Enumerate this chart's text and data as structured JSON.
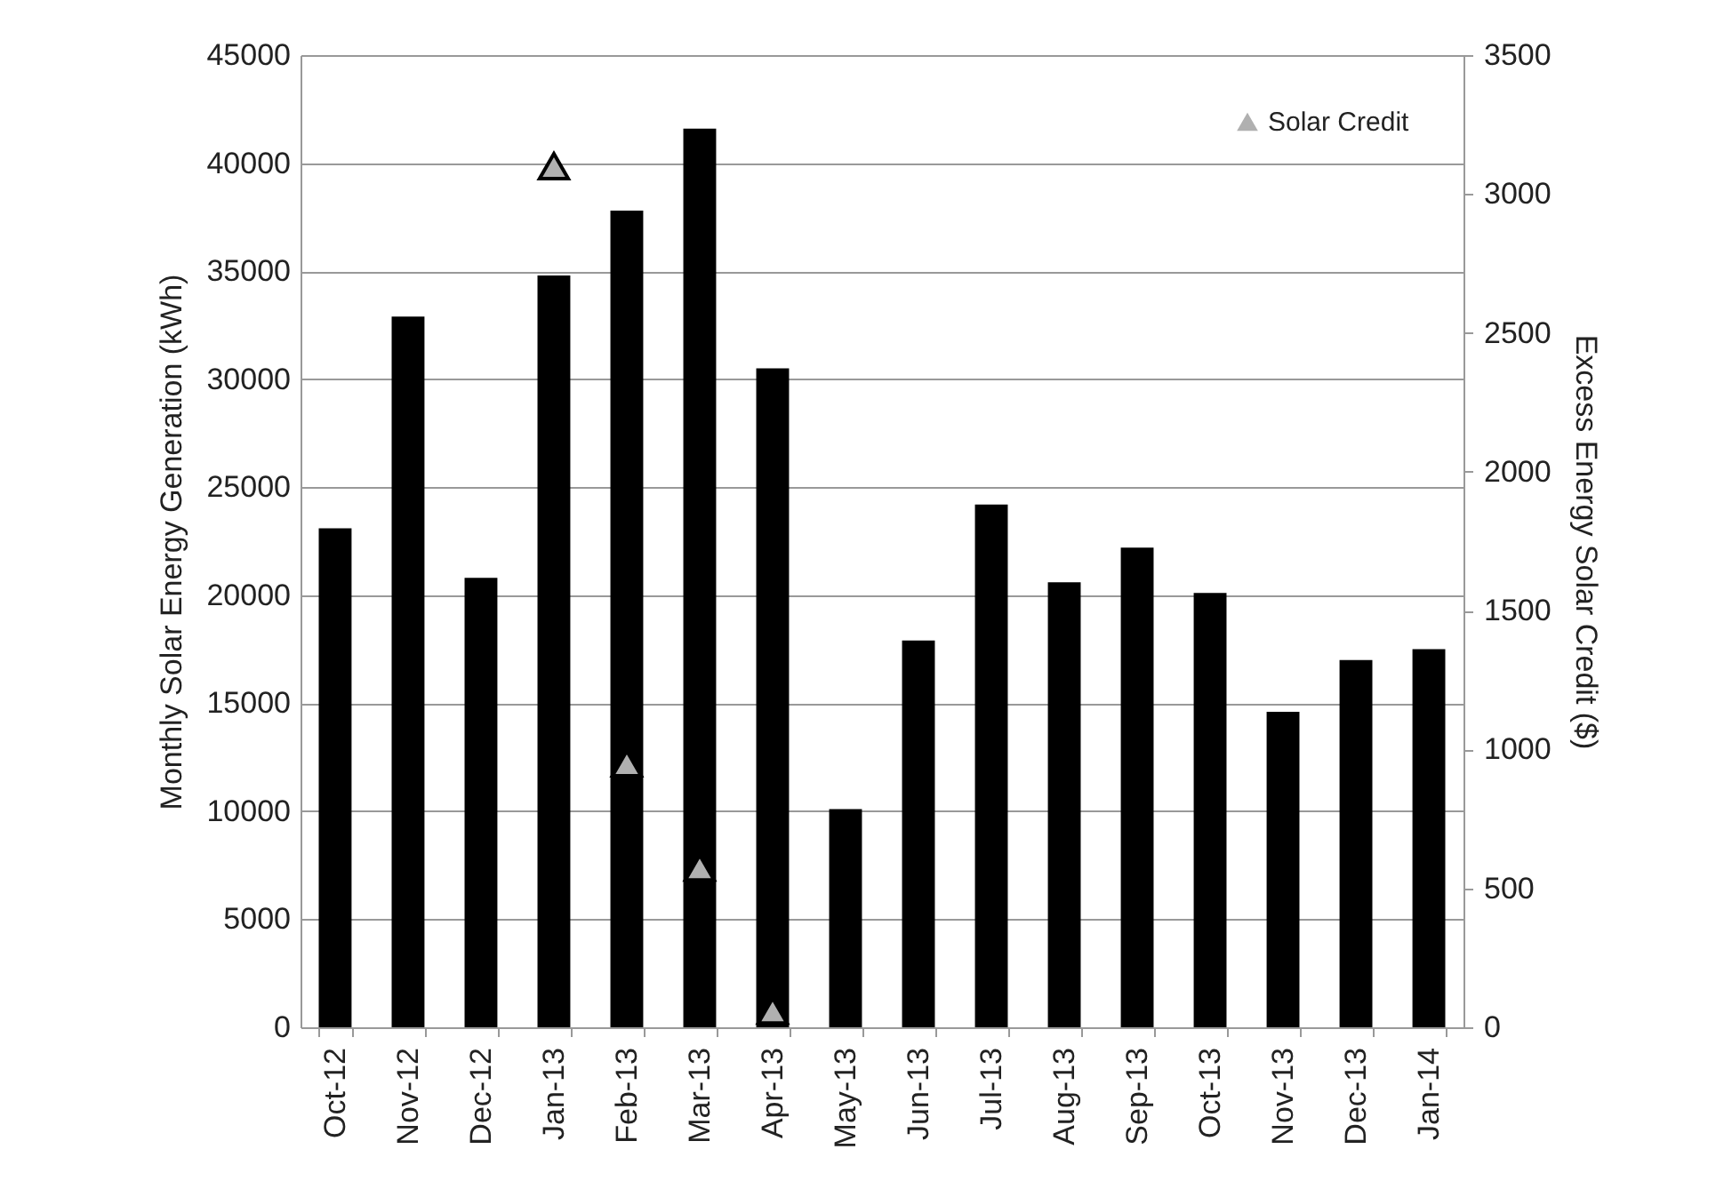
{
  "chart_data": {
    "type": "bar",
    "ylabel": "Monthly Solar Energy Generation (kWh)",
    "y2label": "Excess Energy Solar Credit ($)",
    "categories": [
      "Oct-12",
      "Nov-12",
      "Dec-12",
      "Jan-13",
      "Feb-13",
      "Mar-13",
      "Apr-13",
      "May-13",
      "Jun-13",
      "Jul-13",
      "Aug-13",
      "Sep-13",
      "Oct-13",
      "Nov-13",
      "Dec-13",
      "Jan-14"
    ],
    "series": [
      {
        "color": "#000000",
        "values": [
          23100,
          32900,
          20800,
          34800,
          37800,
          41600,
          30500,
          10100,
          17900,
          24200,
          20600,
          22200,
          20100,
          14600,
          17000,
          17500
        ]
      },
      {
        "type": "scatter",
        "name": "Solar Credit",
        "axis": "y2",
        "color": "#b0b0b0",
        "marker": "triangle",
        "values": [
          null,
          null,
          null,
          3100,
          950,
          575,
          60,
          null,
          null,
          null,
          null,
          null,
          null,
          null,
          null,
          null
        ]
      }
    ],
    "ylim": [
      0,
      45000
    ],
    "yticks": [
      0,
      5000,
      10000,
      15000,
      20000,
      25000,
      30000,
      35000,
      40000,
      45000
    ],
    "y2lim": [
      0,
      3500
    ],
    "y2ticks": [
      0,
      500,
      1000,
      1500,
      2000,
      2500,
      3000,
      3500
    ],
    "grid": "y",
    "legend": "top right"
  }
}
